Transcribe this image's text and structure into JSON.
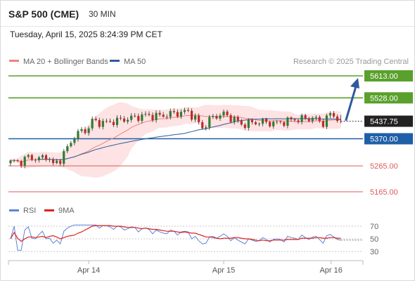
{
  "header": {
    "symbol": "S&P 500 (CME)",
    "interval": "30 MIN",
    "timestamp": "Tuesday, April 15, 2025 8:24:39 PM CET"
  },
  "legend": {
    "ma20": {
      "label": "MA 20 + Bollinger Bands",
      "color": "#f08080"
    },
    "ma50": {
      "label": "MA 50",
      "color": "#2f5b9a"
    },
    "credit": "Research © 2025 Trading Central"
  },
  "chart_data": {
    "type": "candlestick",
    "x_ticks": [
      {
        "label": "Apr 14",
        "index": 22
      },
      {
        "label": "Apr 15",
        "index": 60
      },
      {
        "label": "Apr 16",
        "index": 93
      }
    ],
    "price_ylim": [
      5115,
      5660
    ],
    "levels": [
      {
        "value": 5613.0,
        "label": "5613.00",
        "kind": "resistance",
        "color": "#5aa02c"
      },
      {
        "value": 5528.0,
        "label": "5528.00",
        "kind": "resistance",
        "color": "#5aa02c"
      },
      {
        "value": 5370.0,
        "label": "5370.00",
        "kind": "pivot",
        "color": "#1f5fa8"
      },
      {
        "value": 5265.0,
        "label": "5265.00",
        "kind": "support",
        "color": "#e05a5a"
      },
      {
        "value": 5165.0,
        "label": "5165.00",
        "kind": "support",
        "color": "#e05a5a"
      }
    ],
    "last_price": {
      "value": 5437.75,
      "label": "5437.75"
    },
    "arrow": {
      "from_index": 94,
      "from_value": 5440,
      "to_index": 98,
      "to_value": 5605,
      "color": "#2f5b9a"
    },
    "ohlc": [],
    "rsi_panel": {
      "legend": [
        {
          "label": "RSI",
          "color": "#5b85d6"
        },
        {
          "label": "9MA",
          "color": "#e02020"
        }
      ],
      "ylim": [
        20,
        80
      ],
      "ticks": [
        {
          "value": 70,
          "label": "70"
        },
        {
          "value": 50,
          "label": "50"
        },
        {
          "value": 30,
          "label": "30"
        }
      ],
      "rsi": [],
      "ma9": []
    }
  }
}
